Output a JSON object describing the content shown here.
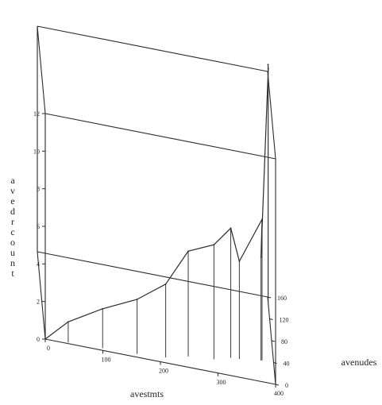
{
  "chart_data": {
    "type": "line",
    "projection": "3d",
    "title": "",
    "xlabel": "avestmts",
    "ylabel": "avenudes",
    "zlabel": "avedrcount",
    "xlim": [
      0,
      400
    ],
    "ylim": [
      0,
      160
    ],
    "zlim": [
      0,
      12
    ],
    "x_ticks": [
      "0",
      "100",
      "200",
      "300",
      "400"
    ],
    "y_ticks": [
      "0",
      "40",
      "80",
      "120",
      "160"
    ],
    "z_ticks": [
      "0",
      "2",
      "4",
      "6",
      "8",
      "10",
      "12"
    ],
    "grid": false,
    "series": [
      {
        "points": [
          {
            "x": 0,
            "y": 0,
            "z": 0
          },
          {
            "x": 40,
            "y": 2,
            "z": 1.1
          },
          {
            "x": 100,
            "y": 4,
            "z": 2.1
          },
          {
            "x": 160,
            "y": 6,
            "z": 2.9
          },
          {
            "x": 210,
            "y": 10,
            "z": 3.9
          },
          {
            "x": 250,
            "y": 20,
            "z": 5.6
          },
          {
            "x": 295,
            "y": 24,
            "z": 6.1
          },
          {
            "x": 325,
            "y": 33,
            "z": 6.9
          },
          {
            "x": 340,
            "y": 34,
            "z": 5.2
          },
          {
            "x": 380,
            "y": 40,
            "z": 7.5
          },
          {
            "x": 378,
            "y": 39,
            "z": 5.5
          },
          {
            "x": 400,
            "y": 148,
            "z": 12.5
          },
          {
            "x": 400,
            "y": 152,
            "z": 12.6
          }
        ]
      }
    ]
  }
}
